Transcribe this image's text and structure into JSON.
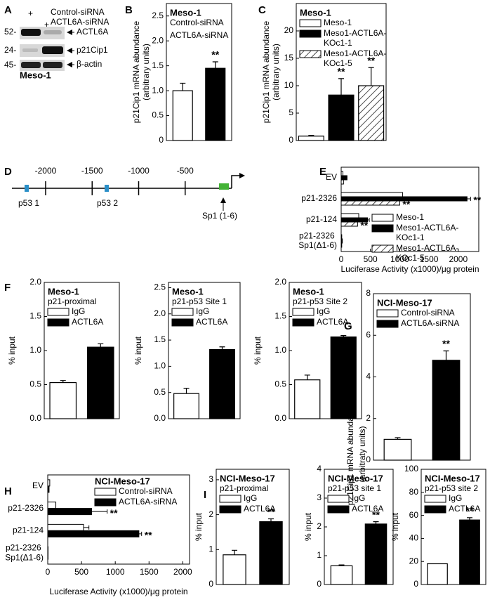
{
  "panels": [
    "A",
    "B",
    "C",
    "D",
    "E",
    "F",
    "G",
    "H",
    "I"
  ],
  "blot": {
    "lane_marks": [
      "+",
      "+"
    ],
    "lanes": [
      "Control-siRNA",
      "ACTL6A-siRNA"
    ],
    "markers": [
      "52-",
      "24-",
      "45-"
    ],
    "bands": [
      "ACTL6A",
      "p21Cip1",
      "β-actin"
    ],
    "cell_line": "Meso-1"
  },
  "diagram": {
    "positions": [
      -2000,
      -1500,
      -1000,
      -500
    ],
    "sites": [
      "p53  1",
      "p53  2",
      "Sp1 (1-6)"
    ]
  },
  "chart_data": [
    {
      "type": "bar",
      "title": "Meso-1",
      "ylabel": "p21Cip1 mRNA abundance",
      "ylabel_2": "(arbitrary units)",
      "ylim": [
        0,
        2.75
      ],
      "yticks": [
        0,
        0.5,
        {
          "value": 1,
          "label": "1.0"
        },
        1.5,
        {
          "value": 2,
          "label": "2.0"
        },
        2.5
      ],
      "legend_swatches": false,
      "series": [
        {
          "name": "Control-siRNA",
          "color": "#ffffff",
          "values": [
            1.0
          ],
          "errors": [
            0.15
          ]
        },
        {
          "name": "ACTL6A-siRNA",
          "color": "#000000",
          "values": [
            1.45
          ],
          "errors": [
            0.13
          ],
          "labels": [
            "**"
          ]
        }
      ]
    },
    {
      "type": "bar",
      "title": "Meso-1",
      "ylabel": "p21Cip1 mRNA abundance",
      "ylabel_2": "(arbitrary units)",
      "ylim": [
        0,
        25
      ],
      "yticks": [
        0,
        5,
        10,
        15,
        20
      ],
      "series": [
        {
          "name": "Meso-1",
          "color": "#ffffff",
          "values": [
            0.8
          ],
          "errors": [
            0.15
          ]
        },
        {
          "name": "Meso1-ACTL6A-KOc1-1",
          "color": "#000000",
          "values": [
            8.3
          ],
          "errors": [
            3.0
          ],
          "labels": [
            "**"
          ]
        },
        {
          "name": "Meso1-ACTL6A-KOc1-5",
          "color": "#ffffff",
          "pattern": "hatch",
          "values": [
            10
          ],
          "errors": [
            3.3
          ],
          "labels": [
            "**"
          ]
        }
      ]
    },
    {
      "type": "barh",
      "categories": [
        "EV",
        "p21-2326",
        "p21-124",
        "p21-2326 Sp1(Δ1-6)"
      ],
      "xlim": [
        0,
        2350
      ],
      "xticks": [
        0,
        500,
        1000,
        1500,
        2000
      ],
      "xlabel": "Luciferase Activity (x1000)/μg protein",
      "series": [
        {
          "name": "Meso-1",
          "color": "#ffffff",
          "values": [
            30,
            1050,
            300,
            10
          ]
        },
        {
          "name": "Meso1-ACTL6A-KOc1-1",
          "color": "#000000",
          "values": [
            100,
            2150,
            450,
            20
          ],
          "errors": [
            null,
            60,
            30,
            null
          ],
          "labels": [
            null,
            "**",
            "**",
            null
          ]
        },
        {
          "name": "Meso1-ACTL6A-KOc1-5",
          "color": "#ffffff",
          "pattern": "hatch",
          "values": [
            40,
            1000,
            280,
            10
          ],
          "labels": [
            null,
            "**",
            "**",
            null
          ]
        }
      ]
    },
    {
      "type": "bar",
      "title": "Meso-1",
      "subtitle": "p21-proximal",
      "ylabel": "% input",
      "ylim": [
        0,
        2
      ],
      "yticks": [
        {
          "value": 0,
          "label": "0.0"
        },
        0.5,
        {
          "value": 1,
          "label": "1.0"
        },
        1.5,
        {
          "value": 2,
          "label": "2.0"
        }
      ],
      "series": [
        {
          "name": "IgG",
          "color": "#ffffff",
          "values": [
            0.53
          ],
          "errors": [
            0.03
          ]
        },
        {
          "name": "ACTL6A",
          "color": "#000000",
          "values": [
            1.05
          ],
          "errors": [
            0.05
          ]
        }
      ]
    },
    {
      "type": "bar",
      "title": "Meso-1",
      "subtitle": "p21-p53 Site 1",
      "ylabel": "% input",
      "ylim": [
        0,
        2.6
      ],
      "yticks": [
        {
          "value": 0,
          "label": "0.0"
        },
        0.5,
        {
          "value": 1,
          "label": "1.0"
        },
        1.5,
        {
          "value": 2,
          "label": "2.0"
        },
        2.5
      ],
      "series": [
        {
          "name": "IgG",
          "color": "#ffffff",
          "values": [
            0.48
          ],
          "errors": [
            0.1
          ]
        },
        {
          "name": "ACTL6A",
          "color": "#000000",
          "values": [
            1.32
          ],
          "errors": [
            0.05
          ]
        }
      ]
    },
    {
      "type": "bar",
      "title": "Meso-1",
      "subtitle": "p21-p53 Site 2",
      "ylabel": "% input",
      "ylim": [
        0,
        2
      ],
      "yticks": [
        {
          "value": 0,
          "label": "0.0"
        },
        0.5,
        {
          "value": 1,
          "label": "1.0"
        },
        1.5,
        {
          "value": 2,
          "label": "2.0"
        }
      ],
      "series": [
        {
          "name": "IgG",
          "color": "#ffffff",
          "values": [
            0.57
          ],
          "errors": [
            0.07
          ]
        },
        {
          "name": "ACTL6A",
          "color": "#000000",
          "values": [
            1.2
          ],
          "errors": [
            0.02
          ]
        }
      ]
    },
    {
      "type": "bar",
      "title": "NCI-Meso-17",
      "ylabel": "p21Cip1 mRNA abundance",
      "ylabel_2": "(arbitraty units)",
      "ylim": [
        0,
        8
      ],
      "yticks": [
        0,
        2,
        4,
        6,
        8
      ],
      "series": [
        {
          "name": "Control-siRNA",
          "color": "#ffffff",
          "values": [
            1.0
          ],
          "errors": [
            0.08
          ]
        },
        {
          "name": "ACTL6A-siRNA",
          "color": "#000000",
          "values": [
            4.8
          ],
          "errors": [
            0.45
          ],
          "labels": [
            "**"
          ]
        }
      ]
    },
    {
      "type": "barh",
      "title": "NCI-Meso-17",
      "categories": [
        "EV",
        "p21-2326",
        "p21-124",
        "p21-2326 Sp1(Δ1-6)"
      ],
      "xlim": [
        0,
        2100
      ],
      "xticks": [
        0,
        500,
        1000,
        1500,
        2000
      ],
      "xlabel": "Luciferase Activity (x1000)/μg protein",
      "series": [
        {
          "name": "Control-siRNA",
          "color": "#ffffff",
          "values": [
            30,
            120,
            530,
            5
          ],
          "errors": [
            null,
            null,
            80,
            null
          ]
        },
        {
          "name": "ACTL6A-siRNA",
          "color": "#000000",
          "values": [
            20,
            650,
            1350,
            5
          ],
          "errors": [
            null,
            230,
            40,
            null
          ],
          "labels": [
            null,
            "**",
            "**",
            null
          ]
        }
      ]
    },
    {
      "type": "bar",
      "title": "NCI-Meso-17",
      "subtitle": "p21-proximal",
      "ylabel": "% input",
      "ylim": [
        0,
        3.3
      ],
      "yticks": [
        0,
        1,
        2,
        3
      ],
      "series": [
        {
          "name": "IgG",
          "color": "#ffffff",
          "values": [
            0.85
          ],
          "errors": [
            0.13
          ]
        },
        {
          "name": "ACTL6A",
          "color": "#000000",
          "values": [
            1.8
          ],
          "errors": [
            0.08
          ],
          "labels": [
            "**"
          ]
        }
      ]
    },
    {
      "type": "bar",
      "title": "NCI-Meso-17",
      "subtitle": "p21-p53 site 1",
      "ylabel": "% input",
      "ylim": [
        0,
        4
      ],
      "yticks": [
        0,
        1,
        2,
        3,
        4
      ],
      "series": [
        {
          "name": "IgG",
          "color": "#ffffff",
          "values": [
            0.65
          ],
          "errors": [
            0.03
          ]
        },
        {
          "name": "ACTL6A",
          "color": "#000000",
          "values": [
            2.1
          ],
          "errors": [
            0.08
          ],
          "labels": [
            "**"
          ]
        }
      ]
    },
    {
      "type": "bar",
      "title": "NCI-Meso-17",
      "subtitle": "p21-p53 site 2",
      "ylabel": "% input",
      "ylim": [
        0,
        100
      ],
      "yticks": [
        0,
        20,
        40,
        60,
        80,
        100
      ],
      "series": [
        {
          "name": "IgG",
          "color": "#ffffff",
          "values": [
            18
          ]
        },
        {
          "name": "ACTL6A",
          "color": "#000000",
          "values": [
            56
          ],
          "errors": [
            2
          ],
          "labels": [
            "**"
          ]
        }
      ]
    }
  ]
}
